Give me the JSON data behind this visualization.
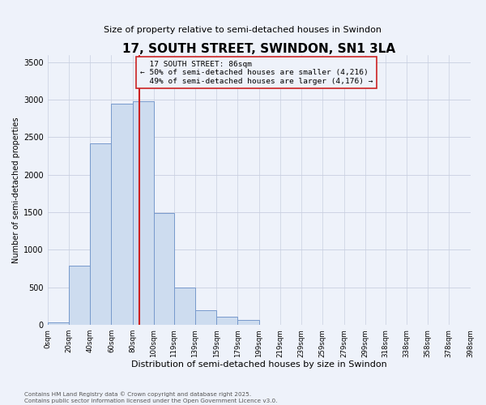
{
  "title": "17, SOUTH STREET, SWINDON, SN1 3LA",
  "subtitle": "Size of property relative to semi-detached houses in Swindon",
  "xlabel": "Distribution of semi-detached houses by size in Swindon",
  "ylabel": "Number of semi-detached properties",
  "property_size": 86,
  "property_label": "17 SOUTH STREET: 86sqm",
  "pct_smaller": 50,
  "pct_larger": 49,
  "count_smaller": 4216,
  "count_larger": 4176,
  "bin_edges": [
    0,
    20,
    40,
    60,
    80,
    100,
    119,
    139,
    159,
    179,
    199,
    219,
    239,
    259,
    279,
    299,
    318,
    338,
    358,
    378,
    398
  ],
  "bar_heights": [
    30,
    790,
    2420,
    2950,
    2980,
    1490,
    500,
    200,
    105,
    65,
    5,
    5,
    5,
    5,
    5,
    5,
    2,
    2,
    2,
    2
  ],
  "bar_color": "#cddcef",
  "bar_edge_color": "#7799cc",
  "highlight_color": "#cc2222",
  "background_color": "#eef2fa",
  "grid_color": "#c8cfe0",
  "annotation_box_color": "#cc2222",
  "ylim": [
    0,
    3600
  ],
  "yticks": [
    0,
    500,
    1000,
    1500,
    2000,
    2500,
    3000,
    3500
  ],
  "footnote": "Contains HM Land Registry data © Crown copyright and database right 2025.\nContains public sector information licensed under the Open Government Licence v3.0."
}
